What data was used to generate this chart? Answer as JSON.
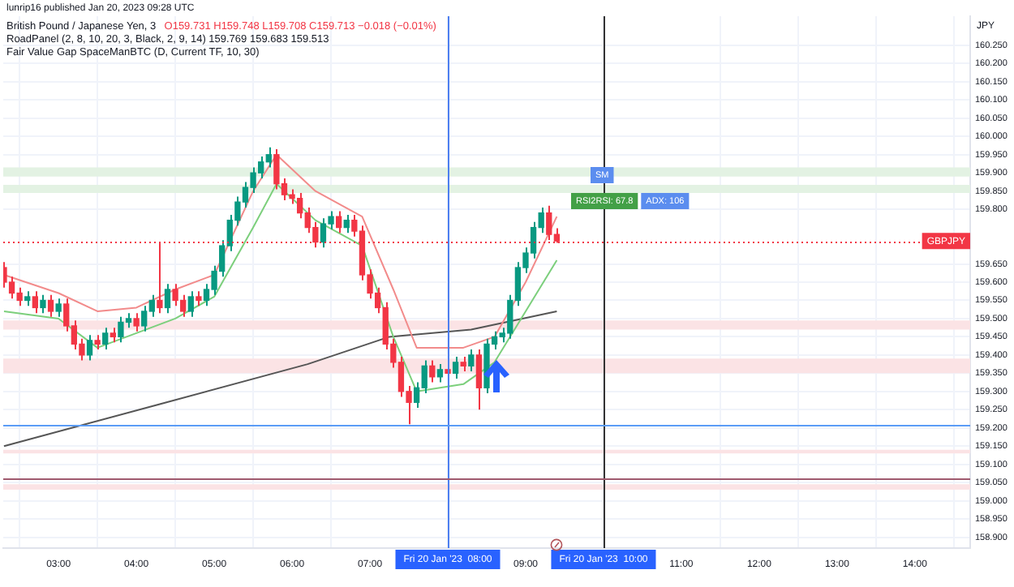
{
  "chart_data": {
    "type": "candlestick",
    "title": "British Pound / Japanese Yen, 3",
    "subtitle": "O159.731 H159.748 L159.708 C159.713 −0.018 (−0.01%)",
    "ylabel": "JPY",
    "annotations": [
      "lunrip16 published Jan 20, 2023 09:28 UTC",
      "RoadPanel (2, 8, 10, 20, 3, Black, 2, 9, 14) 159.769 159.683 159.513",
      "Fair Value Gap SpaceManBTC (D, Current TF, 10, 30)",
      "SM",
      "RSI2RSI: 67.8",
      "ADX: 106"
    ],
    "x": [
      2.3,
      2.4,
      2.5,
      2.6,
      2.7,
      2.8,
      2.9,
      3.0,
      3.1,
      3.2,
      3.3,
      3.4,
      3.5,
      3.6,
      3.7,
      3.8,
      3.9,
      4.0,
      4.1,
      4.2,
      4.3,
      4.4,
      4.5,
      4.6,
      4.7,
      4.8,
      4.9,
      5.0,
      5.1,
      5.2,
      5.3,
      5.4,
      5.5,
      5.6,
      5.7,
      5.8,
      5.9,
      6.0,
      6.1,
      6.2,
      6.3,
      6.4,
      6.5,
      6.6,
      6.7,
      6.8,
      6.9,
      7.0,
      7.1,
      7.2,
      7.3,
      7.4,
      7.5,
      7.6,
      7.7,
      7.8,
      7.9,
      8.0,
      8.1,
      8.2,
      8.3,
      8.4,
      8.5,
      8.6,
      8.7,
      8.8,
      8.9,
      9.0,
      9.1,
      9.2,
      9.3,
      9.4
    ],
    "ohlc": [
      [
        159.64,
        159.655,
        159.585,
        159.6
      ],
      [
        159.6,
        159.615,
        159.555,
        159.57
      ],
      [
        159.57,
        159.585,
        159.535,
        159.55
      ],
      [
        159.55,
        159.575,
        159.535,
        159.56
      ],
      [
        159.56,
        159.575,
        159.515,
        159.53
      ],
      [
        159.53,
        159.565,
        159.515,
        159.55
      ],
      [
        159.55,
        159.565,
        159.505,
        159.52
      ],
      [
        159.52,
        159.555,
        159.505,
        159.54
      ],
      [
        159.54,
        159.555,
        159.465,
        159.48
      ],
      [
        159.48,
        159.495,
        159.415,
        159.43
      ],
      [
        159.43,
        159.445,
        159.385,
        159.4
      ],
      [
        159.4,
        159.455,
        159.385,
        159.44
      ],
      [
        159.44,
        159.455,
        159.415,
        159.43
      ],
      [
        159.43,
        159.475,
        159.415,
        159.46
      ],
      [
        159.46,
        159.475,
        159.435,
        159.45
      ],
      [
        159.45,
        159.505,
        159.435,
        159.49
      ],
      [
        159.49,
        159.515,
        159.475,
        159.5
      ],
      [
        159.5,
        159.515,
        159.465,
        159.48
      ],
      [
        159.48,
        159.535,
        159.465,
        159.52
      ],
      [
        159.52,
        159.565,
        159.505,
        159.55
      ],
      [
        159.55,
        159.71,
        159.515,
        159.53
      ],
      [
        159.53,
        159.595,
        159.515,
        159.58
      ],
      [
        159.58,
        159.595,
        159.535,
        159.55
      ],
      [
        159.55,
        159.565,
        159.505,
        159.52
      ],
      [
        159.52,
        159.575,
        159.505,
        159.56
      ],
      [
        159.56,
        159.575,
        159.535,
        159.55
      ],
      [
        159.55,
        159.595,
        159.535,
        159.58
      ],
      [
        159.58,
        159.645,
        159.565,
        159.63
      ],
      [
        159.63,
        159.715,
        159.615,
        159.7
      ],
      [
        159.7,
        159.785,
        159.685,
        159.77
      ],
      [
        159.77,
        159.835,
        159.755,
        159.82
      ],
      [
        159.82,
        159.875,
        159.805,
        159.86
      ],
      [
        159.86,
        159.915,
        159.845,
        159.9
      ],
      [
        159.9,
        159.945,
        159.885,
        159.93
      ],
      [
        159.93,
        159.97,
        159.915,
        159.95
      ],
      [
        159.95,
        159.965,
        159.855,
        159.87
      ],
      [
        159.87,
        159.885,
        159.825,
        159.84
      ],
      [
        159.84,
        159.855,
        159.815,
        159.83
      ],
      [
        159.83,
        159.845,
        159.775,
        159.79
      ],
      [
        159.79,
        159.805,
        159.735,
        159.75
      ],
      [
        159.75,
        159.765,
        159.695,
        159.71
      ],
      [
        159.71,
        159.775,
        159.695,
        159.76
      ],
      [
        159.76,
        159.795,
        159.745,
        159.78
      ],
      [
        159.78,
        159.795,
        159.735,
        159.75
      ],
      [
        159.75,
        159.785,
        159.735,
        159.77
      ],
      [
        159.77,
        159.785,
        159.725,
        159.74
      ],
      [
        159.74,
        159.755,
        159.605,
        159.62
      ],
      [
        159.62,
        159.635,
        159.555,
        159.57
      ],
      [
        159.57,
        159.585,
        159.515,
        159.53
      ],
      [
        159.53,
        159.545,
        159.415,
        159.43
      ],
      [
        159.43,
        159.445,
        159.365,
        159.38
      ],
      [
        159.38,
        159.395,
        159.285,
        159.3
      ],
      [
        159.3,
        159.315,
        159.21,
        159.27
      ],
      [
        159.27,
        159.325,
        159.255,
        159.31
      ],
      [
        159.31,
        159.385,
        159.295,
        159.37
      ],
      [
        159.37,
        159.385,
        159.325,
        159.34
      ],
      [
        159.34,
        159.375,
        159.325,
        159.36
      ],
      [
        159.36,
        159.375,
        159.335,
        159.35
      ],
      [
        159.35,
        159.395,
        159.335,
        159.38
      ],
      [
        159.38,
        159.395,
        159.355,
        159.37
      ],
      [
        159.37,
        159.415,
        159.355,
        159.4
      ],
      [
        159.4,
        159.415,
        159.25,
        159.31
      ],
      [
        159.31,
        159.445,
        159.295,
        159.43
      ],
      [
        159.43,
        159.465,
        159.415,
        159.45
      ],
      [
        159.45,
        159.475,
        159.435,
        159.46
      ],
      [
        159.46,
        159.565,
        159.445,
        159.55
      ],
      [
        159.55,
        159.655,
        159.535,
        159.64
      ],
      [
        159.64,
        159.695,
        159.625,
        159.68
      ],
      [
        159.68,
        159.765,
        159.665,
        159.75
      ],
      [
        159.75,
        159.805,
        159.735,
        159.79
      ],
      [
        159.79,
        159.81,
        159.716,
        159.731
      ],
      [
        159.731,
        159.748,
        159.708,
        159.713
      ]
    ],
    "colors": [
      "#f23645",
      "#f23645",
      "#f23645",
      "#089981",
      "#f23645",
      "#089981",
      "#f23645",
      "#089981",
      "#f23645",
      "#f23645",
      "#f23645",
      "#089981",
      "#f23645",
      "#089981",
      "#f23645",
      "#089981",
      "#089981",
      "#f23645",
      "#089981",
      "#089981",
      "#f23645",
      "#089981",
      "#f23645",
      "#f23645",
      "#089981",
      "#f23645",
      "#089981",
      "#089981",
      "#089981",
      "#089981",
      "#089981",
      "#089981",
      "#089981",
      "#089981",
      "#089981",
      "#f23645",
      "#f23645",
      "#f23645",
      "#f23645",
      "#f23645",
      "#f23645",
      "#089981",
      "#089981",
      "#f23645",
      "#089981",
      "#f23645",
      "#f23645",
      "#f23645",
      "#f23645",
      "#f23645",
      "#f23645",
      "#f23645",
      "#f23645",
      "#089981",
      "#089981",
      "#f23645",
      "#089981",
      "#f23645",
      "#089981",
      "#f23645",
      "#089981",
      "#f23645",
      "#089981",
      "#089981",
      "#089981",
      "#089981",
      "#089981",
      "#089981",
      "#089981",
      "#089981",
      "#f23645",
      "#f23645"
    ],
    "series": [
      {
        "type": "line",
        "color": "#f28b8b",
        "x": [
          2.3,
          3.0,
          3.5,
          4.0,
          4.5,
          5.0,
          5.5,
          5.8,
          6.3,
          6.9,
          7.3,
          7.6,
          8.2,
          8.6,
          9.0,
          9.4
        ],
        "values": [
          159.62,
          159.57,
          159.52,
          159.53,
          159.58,
          159.62,
          159.85,
          159.95,
          159.85,
          159.78,
          159.58,
          159.42,
          159.42,
          159.45,
          159.6,
          159.78
        ]
      },
      {
        "type": "line",
        "color": "#7ccf7c",
        "x": [
          2.3,
          3.0,
          3.5,
          4.0,
          4.5,
          5.0,
          5.5,
          5.8,
          6.3,
          6.9,
          7.3,
          7.6,
          8.2,
          8.6,
          9.0,
          9.4
        ],
        "values": [
          159.52,
          159.5,
          159.42,
          159.46,
          159.5,
          159.56,
          159.75,
          159.87,
          159.77,
          159.7,
          159.45,
          159.3,
          159.32,
          159.38,
          159.52,
          159.66
        ]
      },
      {
        "type": "line",
        "color": "#555555",
        "x": [
          2.3,
          4.3,
          6.2,
          7.25,
          8.3,
          9.4
        ],
        "values": [
          159.15,
          159.265,
          159.375,
          159.45,
          159.47,
          159.52
        ]
      }
    ],
    "xlim": [
      2.29,
      14.71
    ],
    "xticks": [
      {
        "value": 3,
        "label": "03:00"
      },
      {
        "value": 4,
        "label": "04:00"
      },
      {
        "value": 5,
        "label": "05:00"
      },
      {
        "value": 6,
        "label": "06:00"
      },
      {
        "value": 7,
        "label": "07:00"
      },
      {
        "value": 9,
        "label": "09:00"
      },
      {
        "value": 11,
        "label": "11:00"
      },
      {
        "value": 12,
        "label": "12:00"
      },
      {
        "value": 13,
        "label": "13:00"
      },
      {
        "value": 14,
        "label": "14:00"
      }
    ],
    "ylim": [
      158.87,
      160.33
    ],
    "yticks": [
      {
        "value": 158.9,
        "label": "158.900"
      },
      {
        "value": 158.95,
        "label": "158.950"
      },
      {
        "value": 159.0,
        "label": "159.000"
      },
      {
        "value": 159.05,
        "label": "159.050"
      },
      {
        "value": 159.1,
        "label": "159.100"
      },
      {
        "value": 159.15,
        "label": "159.150"
      },
      {
        "value": 159.2,
        "label": "159.200"
      },
      {
        "value": 159.25,
        "label": "159.250"
      },
      {
        "value": 159.3,
        "label": "159.300"
      },
      {
        "value": 159.35,
        "label": "159.350"
      },
      {
        "value": 159.4,
        "label": "159.400"
      },
      {
        "value": 159.45,
        "label": "159.450"
      },
      {
        "value": 159.5,
        "label": "159.500"
      },
      {
        "value": 159.55,
        "label": "159.550"
      },
      {
        "value": 159.6,
        "label": "159.600"
      },
      {
        "value": 159.65,
        "label": "159.650"
      },
      {
        "value": 159.8,
        "label": "159.800"
      },
      {
        "value": 159.85,
        "label": "159.850"
      },
      {
        "value": 159.9,
        "label": "159.900"
      },
      {
        "value": 159.95,
        "label": "159.950"
      },
      {
        "value": 160.0,
        "label": "160.000"
      },
      {
        "value": 160.05,
        "label": "160.050"
      },
      {
        "value": 160.1,
        "label": "160.100"
      },
      {
        "value": 160.15,
        "label": "160.150"
      },
      {
        "value": 160.2,
        "label": "160.200"
      },
      {
        "value": 160.25,
        "label": "160.250"
      }
    ],
    "ref_lines": [
      {
        "axis": "x",
        "value": 8,
        "label": "Fri 20 Jan '23  08:00",
        "color": "#4d7ff0"
      },
      {
        "axis": "x",
        "value": 10,
        "label": "Fri 20 Jan '23  10:00",
        "color": "#333333"
      },
      {
        "axis": "y",
        "value": 159.21,
        "color": "#5b9cf6"
      },
      {
        "axis": "y",
        "value": 159.06,
        "color": "#a05a6e"
      },
      {
        "axis": "y",
        "value": 159.713,
        "label": "GBPJPY",
        "color": "#f23645",
        "line_style": "dotted"
      }
    ],
    "bands": [
      {
        "axis": "y",
        "from": 159.89,
        "to": 159.915,
        "color": "#e3f2e3"
      },
      {
        "axis": "y",
        "from": 159.845,
        "to": 159.867,
        "color": "#e3f2e3"
      },
      {
        "axis": "y",
        "from": 159.47,
        "to": 159.495,
        "color": "#fbe3e5"
      },
      {
        "axis": "y",
        "from": 159.35,
        "to": 159.39,
        "color": "#fbe3e5"
      },
      {
        "axis": "y",
        "from": 159.13,
        "to": 159.14,
        "color": "#fbe3e5"
      },
      {
        "axis": "y",
        "from": 159.03,
        "to": 159.045,
        "color": "#fbe3e5"
      }
    ],
    "grid": true,
    "marker": "none",
    "line_style": "solid"
  }
}
